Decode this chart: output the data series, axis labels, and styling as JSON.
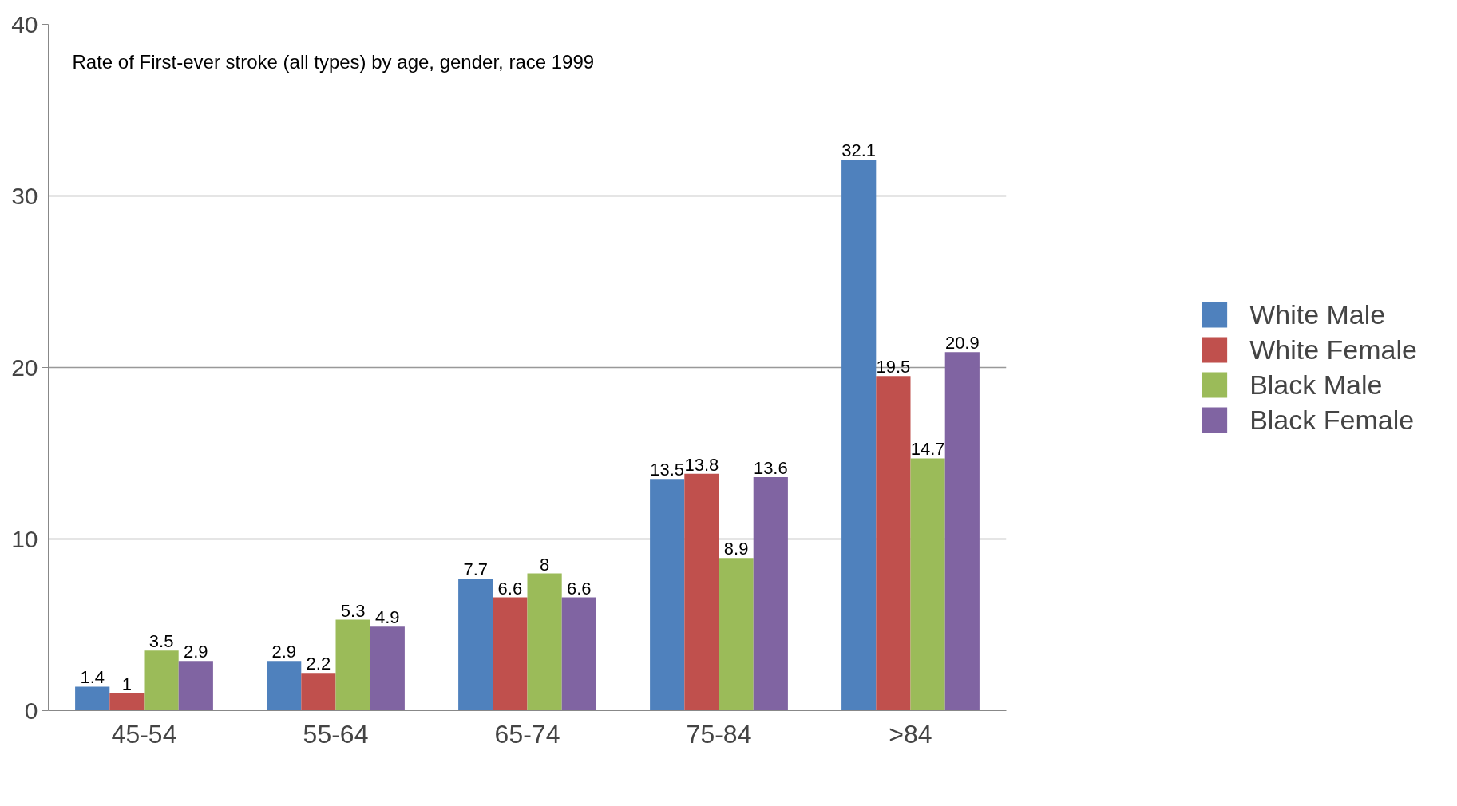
{
  "chart_data": {
    "type": "bar",
    "title": "Rate of First-ever stroke (all types) by age, gender, race 1999",
    "categories": [
      "45-54",
      "55-64",
      "65-74",
      "75-84",
      ">84"
    ],
    "series": [
      {
        "name": "White Male",
        "color": "#4f81bd",
        "values": [
          1.4,
          2.9,
          7.7,
          13.5,
          32.1
        ]
      },
      {
        "name": "White Female",
        "color": "#c0504d",
        "values": [
          1,
          2.2,
          6.6,
          13.8,
          19.5
        ]
      },
      {
        "name": "Black Male",
        "color": "#9bbb59",
        "values": [
          3.5,
          5.3,
          8,
          8.9,
          14.7
        ]
      },
      {
        "name": "Black Female",
        "color": "#8064a2",
        "values": [
          2.9,
          4.9,
          6.6,
          13.6,
          20.9
        ]
      }
    ],
    "ylim": [
      0,
      40
    ],
    "yticks": [
      0,
      10,
      20,
      30,
      40
    ],
    "grid": "y",
    "legend": "right",
    "data_labels": true
  }
}
